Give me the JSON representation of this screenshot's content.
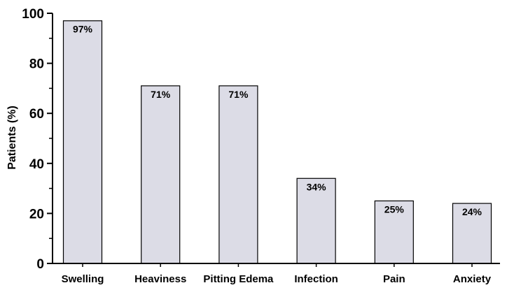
{
  "chart_data": {
    "type": "bar",
    "categories": [
      "Swelling",
      "Heaviness",
      "Pitting Edema",
      "Infection",
      "Pain",
      "Anxiety"
    ],
    "values": [
      97,
      71,
      71,
      34,
      25,
      24
    ],
    "data_labels": [
      "97%",
      "71%",
      "71%",
      "34%",
      "25%",
      "24%"
    ],
    "title": "",
    "xlabel": "",
    "ylabel": "Patients (%)",
    "ylim": [
      0,
      100
    ],
    "yticks": [
      0,
      20,
      40,
      60,
      80,
      100
    ],
    "grid": false,
    "bar_color": "#dcdce6",
    "bar_edge_color": "#000000"
  }
}
